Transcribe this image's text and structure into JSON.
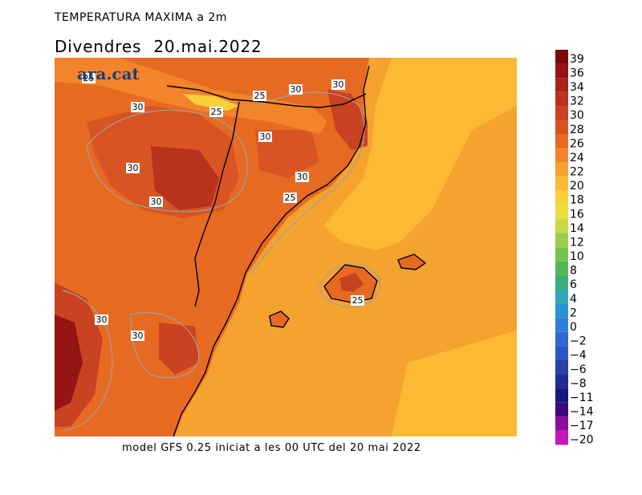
{
  "header": {
    "title": "TEMPERATURA MAXIMA a 2m",
    "subtitle": "Divendres  20.mai.2022"
  },
  "footer": {
    "caption": "model GFS 0.25 iniciat a les 00 UTC del 20 mai 2022"
  },
  "logo": {
    "text": "ara.cat",
    "color": "#1c3f7a"
  },
  "legend": {
    "labels": [
      "39",
      "36",
      "34",
      "32",
      "30",
      "28",
      "26",
      "24",
      "22",
      "20",
      "18",
      "16",
      "14",
      "12",
      "10",
      "8",
      "6",
      "4",
      "2",
      "0",
      "−2",
      "−4",
      "−6",
      "−8",
      "−11",
      "−14",
      "−17",
      "−20"
    ],
    "colors": [
      "#7a0a0a",
      "#951414",
      "#a8221a",
      "#b8321e",
      "#c94222",
      "#d85422",
      "#e76a22",
      "#f2842a",
      "#f6a22e",
      "#fbb934",
      "#f8d038",
      "#e8df40",
      "#c8d846",
      "#9ccd4c",
      "#76c24e",
      "#52b652",
      "#3cae7c",
      "#2ea6b4",
      "#2c92d8",
      "#2e7edc",
      "#3068d2",
      "#2c54c4",
      "#2640ac",
      "#1e2c94",
      "#16187a",
      "#3a0a80",
      "#8a0ca0",
      "#c418b4"
    ]
  },
  "map": {
    "contour_labels": [
      "25",
      "30",
      "25",
      "30",
      "30",
      "25",
      "30",
      "30",
      "30",
      "25",
      "30",
      "25",
      "30",
      "30"
    ],
    "colors": {
      "t24": "#f2842a",
      "t26": "#e76a22",
      "t28": "#d85422",
      "t30": "#c94222",
      "t32": "#b8321e",
      "t36": "#951414",
      "t39": "#7a0a0a",
      "sea": "#f6a22e",
      "cool": "#fbb934",
      "cooler": "#f8d038",
      "isoline": "#a0a0a0",
      "coast": "#000000"
    }
  }
}
